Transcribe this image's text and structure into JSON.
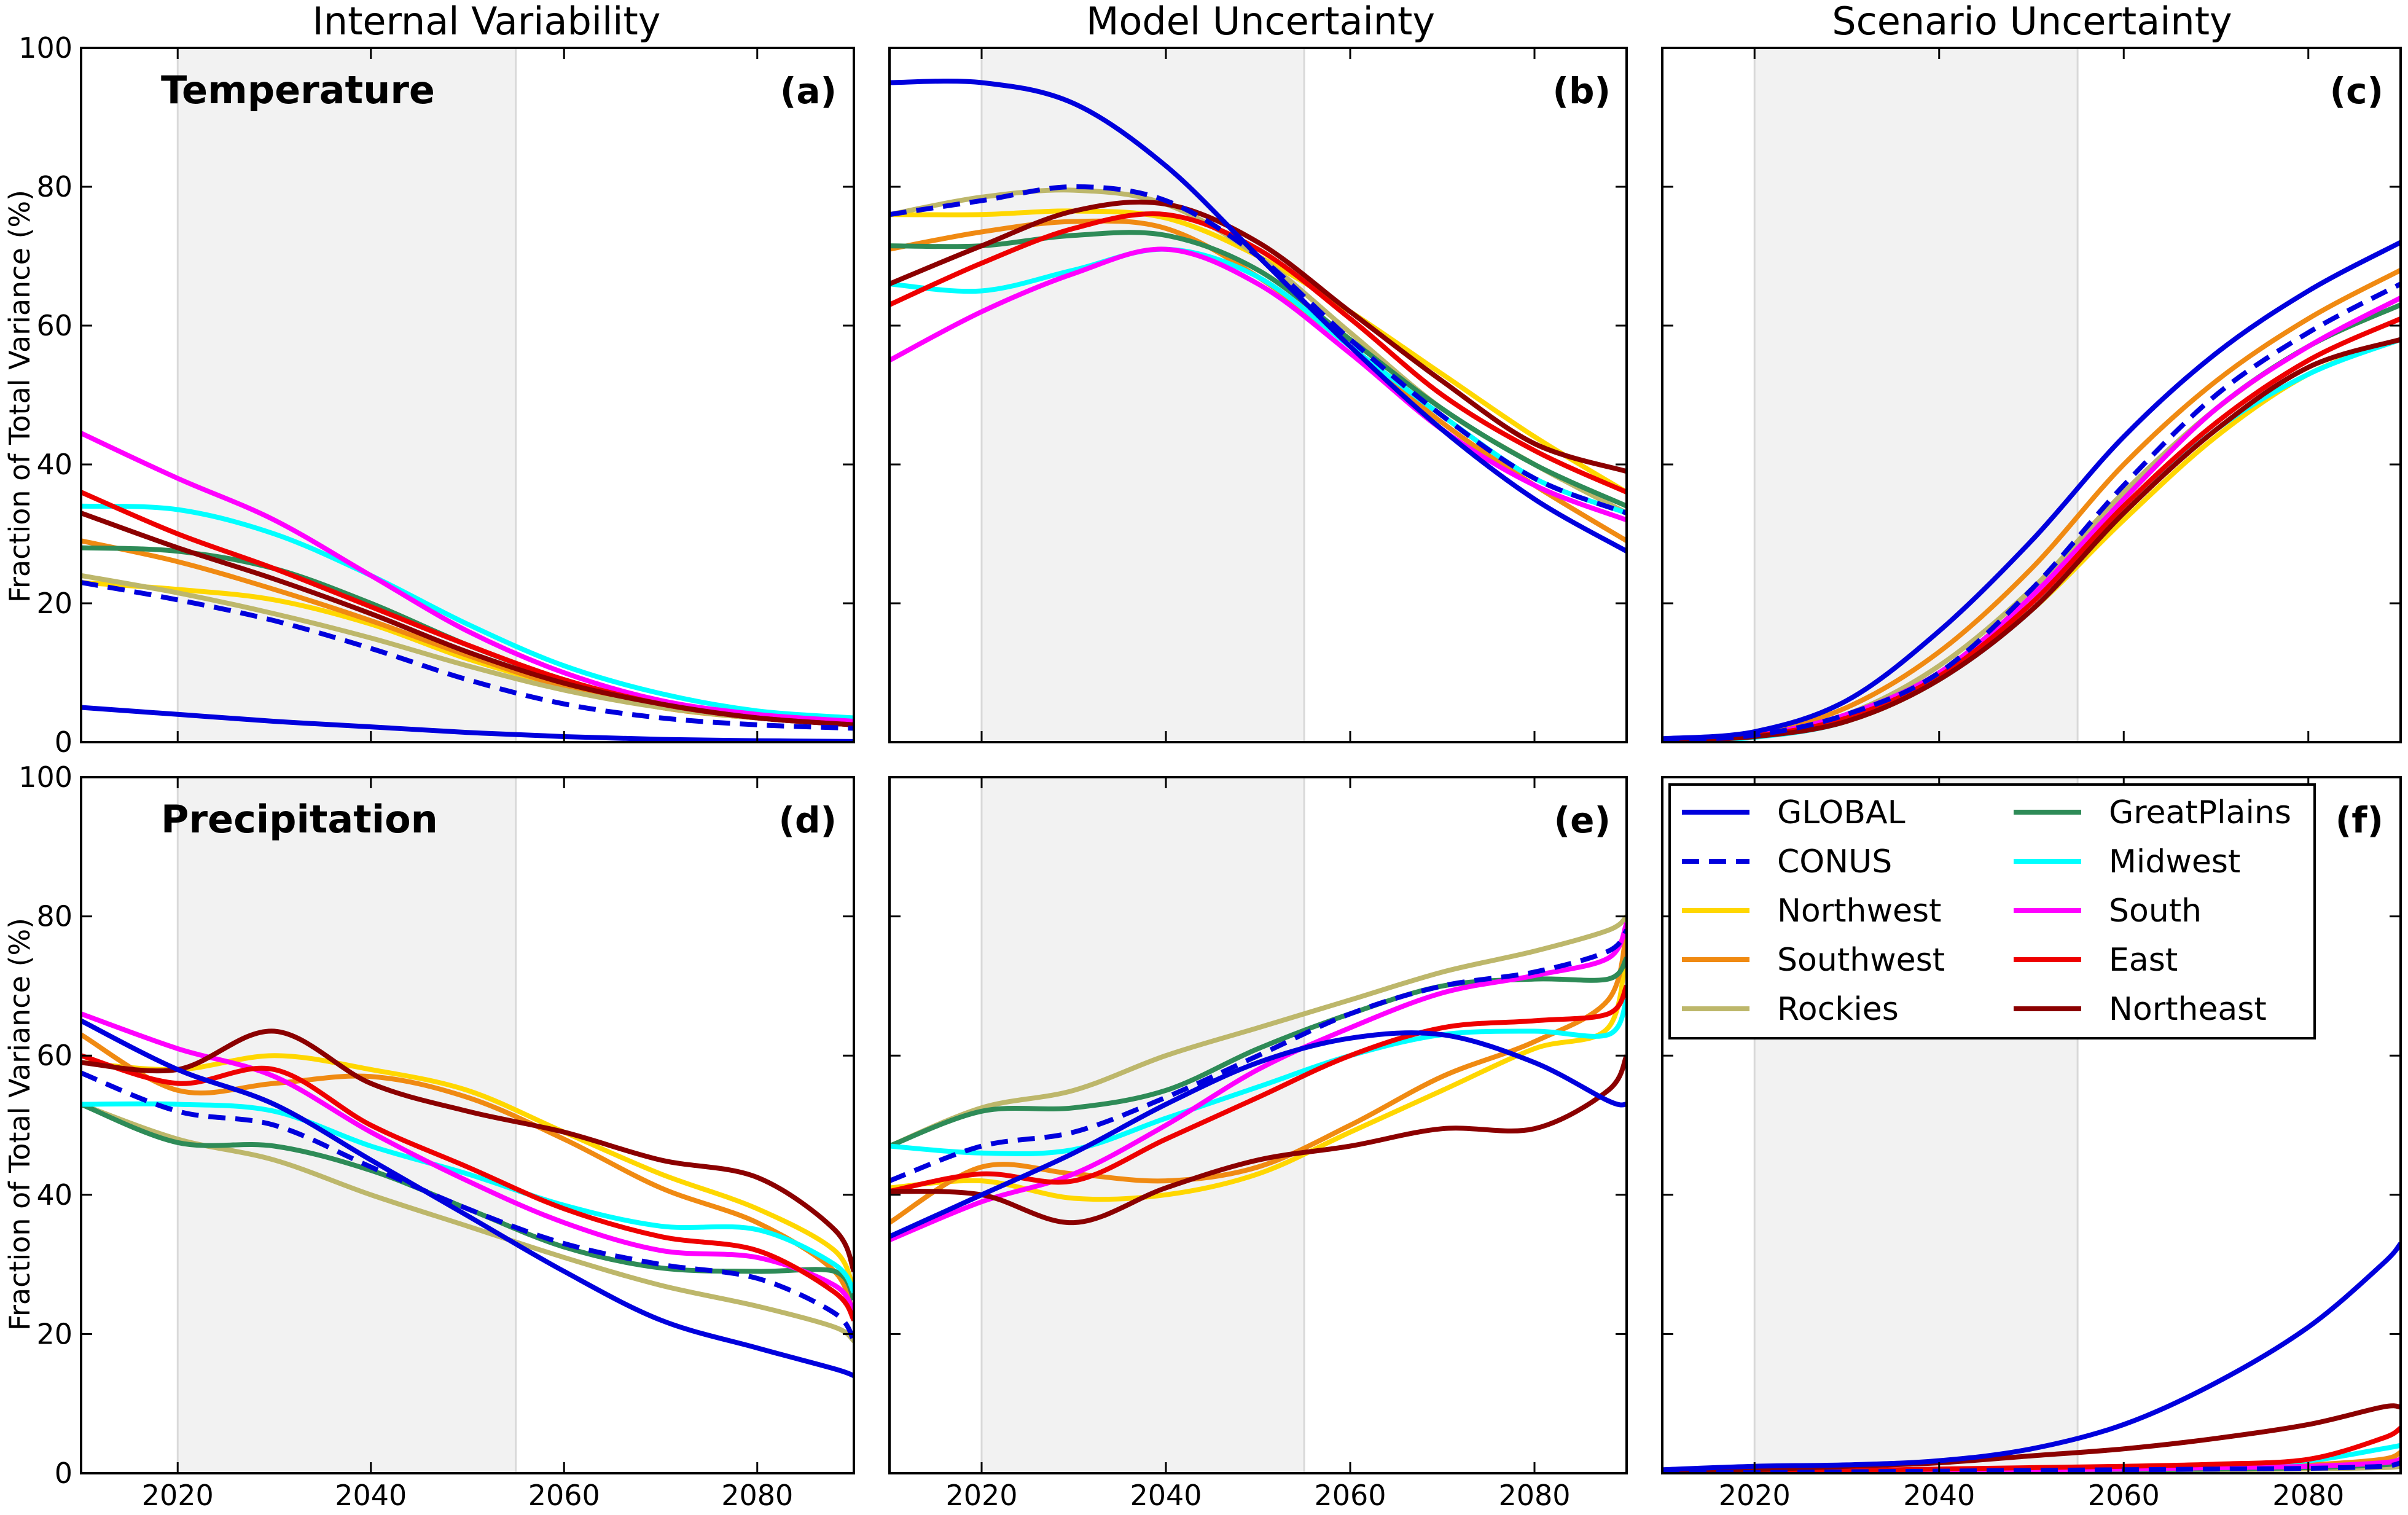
{
  "column_titles": [
    "Internal Variability",
    "Model Uncertainty",
    "Scenario Uncertainty"
  ],
  "row_titles": [
    "Temperature",
    "Precipitation"
  ],
  "panel_labels": [
    "(a)",
    "(b)",
    "(c)",
    "(d)",
    "(e)",
    "(f)"
  ],
  "ylabel": "Fraction of Total Variance (%)",
  "colors": {
    "GLOBAL": "#0000dd",
    "CONUS": "#0000dd",
    "Northwest": "#ffd700",
    "Southwest": "#f08a12",
    "Rockies": "#bdb76b",
    "GreatPlains": "#2e8b57",
    "Midwest": "#00ffff",
    "South": "#ff00ff",
    "East": "#ee0000",
    "Northeast": "#8b0000",
    "shade": "#f2f2f2"
  },
  "legend": {
    "placement": "top-right of panel (f)",
    "entries": [
      {
        "name": "GLOBAL",
        "style": "solid"
      },
      {
        "name": "CONUS",
        "style": "dashed"
      },
      {
        "name": "Northwest",
        "style": "solid"
      },
      {
        "name": "Southwest",
        "style": "solid"
      },
      {
        "name": "Rockies",
        "style": "solid"
      },
      {
        "name": "GreatPlains",
        "style": "solid"
      },
      {
        "name": "Midwest",
        "style": "solid"
      },
      {
        "name": "South",
        "style": "solid"
      },
      {
        "name": "East",
        "style": "solid"
      },
      {
        "name": "Northeast",
        "style": "solid"
      }
    ]
  },
  "chart_data": [
    {
      "type": "line",
      "panel": "(a)",
      "row_title": "Temperature",
      "column_title": "Internal Variability",
      "xlim": [
        2010,
        2090
      ],
      "ylim": [
        0,
        100
      ],
      "xticks": [
        2020,
        2040,
        2060,
        2080
      ],
      "yticks": [
        0,
        20,
        40,
        60,
        80,
        100
      ],
      "shaded_x": [
        2020,
        2055
      ],
      "grid": false,
      "x": [
        2010,
        2020,
        2030,
        2040,
        2050,
        2060,
        2070,
        2080,
        2090
      ],
      "series": [
        {
          "name": "GLOBAL",
          "values": [
            5,
            4,
            3,
            2.2,
            1.4,
            0.8,
            0.4,
            0.2,
            0.1
          ]
        },
        {
          "name": "CONUS",
          "values": [
            23,
            20.5,
            17.5,
            13.5,
            9,
            5.5,
            3.5,
            2.5,
            2
          ]
        },
        {
          "name": "Northwest",
          "values": [
            23,
            22,
            20.5,
            17,
            12,
            8,
            5,
            3.5,
            3
          ]
        },
        {
          "name": "Southwest",
          "values": [
            29,
            26,
            22,
            17.5,
            12.5,
            8,
            5,
            3.5,
            3
          ]
        },
        {
          "name": "Rockies",
          "values": [
            24,
            21.5,
            18.5,
            15,
            11,
            7.5,
            5,
            3.5,
            3
          ]
        },
        {
          "name": "GreatPlains",
          "values": [
            28,
            27.5,
            25,
            20,
            14,
            9,
            5.5,
            3.5,
            2.5
          ]
        },
        {
          "name": "Midwest",
          "values": [
            34,
            33.5,
            30,
            24,
            17,
            11,
            7,
            4.5,
            3.5
          ]
        },
        {
          "name": "South",
          "values": [
            44.5,
            38,
            32,
            24,
            16,
            10,
            6,
            4,
            3
          ]
        },
        {
          "name": "East",
          "values": [
            36,
            30,
            25,
            19.5,
            14,
            9,
            5.5,
            3.5,
            2.5
          ]
        },
        {
          "name": "Northeast",
          "values": [
            33,
            28,
            23.5,
            18.5,
            13,
            8.5,
            5.5,
            3.5,
            2.5
          ]
        }
      ]
    },
    {
      "type": "line",
      "panel": "(b)",
      "row_title": "",
      "column_title": "Model Uncertainty",
      "xlim": [
        2010,
        2090
      ],
      "ylim": [
        0,
        100
      ],
      "xticks": [
        2020,
        2040,
        2060,
        2080
      ],
      "yticks": [
        0,
        20,
        40,
        60,
        80,
        100
      ],
      "shaded_x": [
        2020,
        2055
      ],
      "grid": false,
      "x": [
        2010,
        2020,
        2030,
        2040,
        2050,
        2060,
        2070,
        2080,
        2090
      ],
      "series": [
        {
          "name": "GLOBAL",
          "values": [
            95,
            95,
            92,
            83,
            70,
            57,
            45,
            35,
            27.5
          ]
        },
        {
          "name": "CONUS",
          "values": [
            76,
            78,
            80,
            78,
            70,
            58,
            47,
            38,
            33
          ]
        },
        {
          "name": "Northwest",
          "values": [
            76,
            76,
            76.5,
            75.5,
            70,
            62,
            53,
            44,
            36
          ]
        },
        {
          "name": "Southwest",
          "values": [
            71,
            73.5,
            75,
            74,
            67,
            57,
            46,
            37,
            29
          ]
        },
        {
          "name": "Rockies",
          "values": [
            76,
            78.5,
            79.5,
            77.5,
            70,
            59,
            48,
            40,
            33
          ]
        },
        {
          "name": "GreatPlains",
          "values": [
            71.5,
            71.5,
            73,
            73,
            68,
            58,
            48,
            40,
            34
          ]
        },
        {
          "name": "Midwest",
          "values": [
            66,
            65,
            68,
            71,
            67,
            57,
            47,
            38,
            33
          ]
        },
        {
          "name": "South",
          "values": [
            55,
            62,
            67.5,
            71,
            66,
            56,
            45,
            37,
            32
          ]
        },
        {
          "name": "East",
          "values": [
            63,
            69,
            74,
            76,
            71,
            61,
            50,
            42,
            36
          ]
        },
        {
          "name": "Northeast",
          "values": [
            66,
            71.5,
            76.5,
            77.5,
            72,
            62,
            52,
            43,
            39
          ]
        }
      ]
    },
    {
      "type": "line",
      "panel": "(c)",
      "row_title": "",
      "column_title": "Scenario Uncertainty",
      "xlim": [
        2010,
        2090
      ],
      "ylim": [
        0,
        100
      ],
      "xticks": [
        2020,
        2040,
        2060,
        2080
      ],
      "yticks": [
        0,
        20,
        40,
        60,
        80,
        100
      ],
      "shaded_x": [
        2020,
        2055
      ],
      "grid": false,
      "x": [
        2010,
        2020,
        2030,
        2040,
        2050,
        2060,
        2070,
        2080,
        2090
      ],
      "series": [
        {
          "name": "GLOBAL",
          "values": [
            0.5,
            1.5,
            6,
            16,
            29,
            44,
            56,
            65,
            72
          ]
        },
        {
          "name": "CONUS",
          "values": [
            0.3,
            1,
            4,
            10,
            22,
            37,
            50,
            59,
            66
          ]
        },
        {
          "name": "Northwest",
          "values": [
            0.3,
            0.8,
            3,
            9,
            19,
            32,
            44,
            53,
            58
          ]
        },
        {
          "name": "Southwest",
          "values": [
            0.4,
            1.2,
            5,
            13,
            25,
            40,
            52,
            61,
            68
          ]
        },
        {
          "name": "Rockies",
          "values": [
            0.3,
            1,
            4,
            11,
            22,
            36,
            48,
            57,
            63
          ]
        },
        {
          "name": "GreatPlains",
          "values": [
            0.3,
            1,
            4,
            10,
            21,
            35,
            48,
            57,
            63
          ]
        },
        {
          "name": "Midwest",
          "values": [
            0.2,
            0.7,
            3,
            9,
            19,
            33,
            45,
            53,
            58
          ]
        },
        {
          "name": "South",
          "values": [
            0.3,
            1,
            4,
            10,
            21,
            35,
            48,
            57,
            64
          ]
        },
        {
          "name": "East",
          "values": [
            0.3,
            0.9,
            3.5,
            9.5,
            20,
            34,
            46,
            55,
            61
          ]
        },
        {
          "name": "Northeast",
          "values": [
            0.2,
            0.8,
            3,
            9,
            19,
            33,
            45,
            54,
            58
          ]
        }
      ]
    },
    {
      "type": "line",
      "panel": "(d)",
      "row_title": "Precipitation",
      "column_title": "",
      "xlim": [
        2010,
        2090
      ],
      "ylim": [
        0,
        100
      ],
      "xticks": [
        2020,
        2040,
        2060,
        2080
      ],
      "yticks": [
        0,
        20,
        40,
        60,
        80,
        100
      ],
      "shaded_x": [
        2020,
        2055
      ],
      "grid": false,
      "x": [
        2010,
        2020,
        2030,
        2040,
        2050,
        2060,
        2070,
        2080,
        2088,
        2090
      ],
      "series": [
        {
          "name": "GLOBAL",
          "values": [
            65,
            58,
            53,
            45,
            37,
            29,
            22,
            18,
            15,
            14
          ]
        },
        {
          "name": "CONUS",
          "values": [
            57.5,
            52,
            50,
            44,
            38,
            33,
            30,
            28,
            23,
            19
          ]
        },
        {
          "name": "Northwest",
          "values": [
            59,
            58,
            60,
            58,
            55,
            49,
            43,
            38,
            32,
            26
          ]
        },
        {
          "name": "Southwest",
          "values": [
            63,
            55,
            56,
            57,
            54,
            48,
            41,
            36,
            29,
            22
          ]
        },
        {
          "name": "Rockies",
          "values": [
            53,
            48,
            45,
            40,
            35.5,
            31,
            27,
            24,
            21,
            19
          ]
        },
        {
          "name": "GreatPlains",
          "values": [
            53,
            47.5,
            47,
            43.5,
            38,
            32.5,
            29.5,
            29,
            29,
            25
          ]
        },
        {
          "name": "Midwest",
          "values": [
            53,
            53,
            52,
            47,
            43,
            38.5,
            35.5,
            35,
            30,
            26
          ]
        },
        {
          "name": "South",
          "values": [
            66,
            61,
            57,
            49,
            42,
            36,
            32,
            31,
            27,
            23
          ]
        },
        {
          "name": "East",
          "values": [
            60,
            56,
            58,
            50,
            44,
            38,
            34,
            32,
            26,
            22
          ]
        },
        {
          "name": "Northeast",
          "values": [
            59,
            58,
            63.5,
            56,
            52,
            49,
            45,
            42.5,
            35,
            29
          ]
        }
      ]
    },
    {
      "type": "line",
      "panel": "(e)",
      "row_title": "",
      "column_title": "",
      "xlim": [
        2010,
        2090
      ],
      "ylim": [
        0,
        100
      ],
      "xticks": [
        2020,
        2040,
        2060,
        2080
      ],
      "yticks": [
        0,
        20,
        40,
        60,
        80,
        100
      ],
      "shaded_x": [
        2020,
        2055
      ],
      "grid": false,
      "x": [
        2010,
        2020,
        2030,
        2040,
        2050,
        2060,
        2070,
        2080,
        2088,
        2090
      ],
      "series": [
        {
          "name": "GLOBAL",
          "values": [
            34,
            40,
            46,
            53,
            59,
            62.5,
            63,
            59,
            53.5,
            53
          ]
        },
        {
          "name": "CONUS",
          "values": [
            42,
            47,
            49,
            54,
            60,
            66,
            70,
            72,
            75,
            78
          ]
        },
        {
          "name": "Northwest",
          "values": [
            41,
            42,
            39.5,
            40,
            43,
            49,
            55,
            61,
            64,
            76
          ]
        },
        {
          "name": "Southwest",
          "values": [
            36,
            44,
            43,
            42,
            44,
            50,
            57,
            62,
            68,
            78
          ]
        },
        {
          "name": "Rockies",
          "values": [
            47,
            52.5,
            55,
            60,
            64,
            68,
            72,
            75,
            78,
            80
          ]
        },
        {
          "name": "GreatPlains",
          "values": [
            47,
            52,
            52.5,
            55,
            61,
            66,
            70,
            71,
            71,
            74
          ]
        },
        {
          "name": "Midwest",
          "values": [
            47,
            46,
            46.5,
            51,
            55.5,
            60,
            63,
            63.5,
            63,
            68
          ]
        },
        {
          "name": "South",
          "values": [
            33.5,
            39,
            43,
            50,
            58,
            64,
            69,
            71.5,
            74,
            79
          ]
        },
        {
          "name": "East",
          "values": [
            40.5,
            43,
            42,
            48,
            54,
            60,
            64,
            65,
            66,
            70
          ]
        },
        {
          "name": "Northeast",
          "values": [
            40.5,
            40,
            36,
            41,
            45,
            47,
            49.5,
            49.5,
            55,
            60
          ]
        }
      ]
    },
    {
      "type": "line",
      "panel": "(f)",
      "row_title": "",
      "column_title": "",
      "xlim": [
        2010,
        2090
      ],
      "ylim": [
        0,
        100
      ],
      "xticks": [
        2020,
        2040,
        2060,
        2080
      ],
      "yticks": [
        0,
        20,
        40,
        60,
        80,
        100
      ],
      "shaded_x": [
        2020,
        2055
      ],
      "grid": false,
      "x": [
        2010,
        2020,
        2030,
        2040,
        2050,
        2060,
        2070,
        2080,
        2088,
        2090
      ],
      "series": [
        {
          "name": "GLOBAL",
          "values": [
            0.5,
            1,
            1.2,
            1.8,
            3.5,
            7,
            13,
            21,
            30,
            33
          ]
        },
        {
          "name": "CONUS",
          "values": [
            0.1,
            0.1,
            0.2,
            0.3,
            0.4,
            0.5,
            0.6,
            0.7,
            1,
            1.5
          ]
        },
        {
          "name": "Northwest",
          "values": [
            0.1,
            0.1,
            0.2,
            0.3,
            0.4,
            0.6,
            0.8,
            1,
            1.5,
            2
          ]
        },
        {
          "name": "Southwest",
          "values": [
            0.1,
            0.2,
            0.3,
            0.4,
            0.5,
            0.7,
            0.9,
            1.2,
            2,
            3
          ]
        },
        {
          "name": "Rockies",
          "values": [
            0.1,
            0.1,
            0.2,
            0.2,
            0.3,
            0.4,
            0.5,
            0.6,
            0.8,
            1
          ]
        },
        {
          "name": "GreatPlains",
          "values": [
            0.1,
            0.1,
            0.2,
            0.3,
            0.4,
            0.5,
            0.6,
            0.8,
            1.2,
            1.5
          ]
        },
        {
          "name": "Midwest",
          "values": [
            0.2,
            0.3,
            0.4,
            0.5,
            0.7,
            0.9,
            1.2,
            1.8,
            3.5,
            4
          ]
        },
        {
          "name": "South",
          "values": [
            0.1,
            0.2,
            0.3,
            0.4,
            0.5,
            0.6,
            0.8,
            1,
            1.5,
            2
          ]
        },
        {
          "name": "East",
          "values": [
            0.2,
            0.3,
            0.4,
            0.6,
            0.8,
            1,
            1.3,
            2,
            5,
            6.5
          ]
        },
        {
          "name": "Northeast",
          "values": [
            0.2,
            0.5,
            1,
            1.5,
            2.5,
            3.5,
            5,
            7,
            9.5,
            9.5
          ]
        }
      ]
    }
  ]
}
